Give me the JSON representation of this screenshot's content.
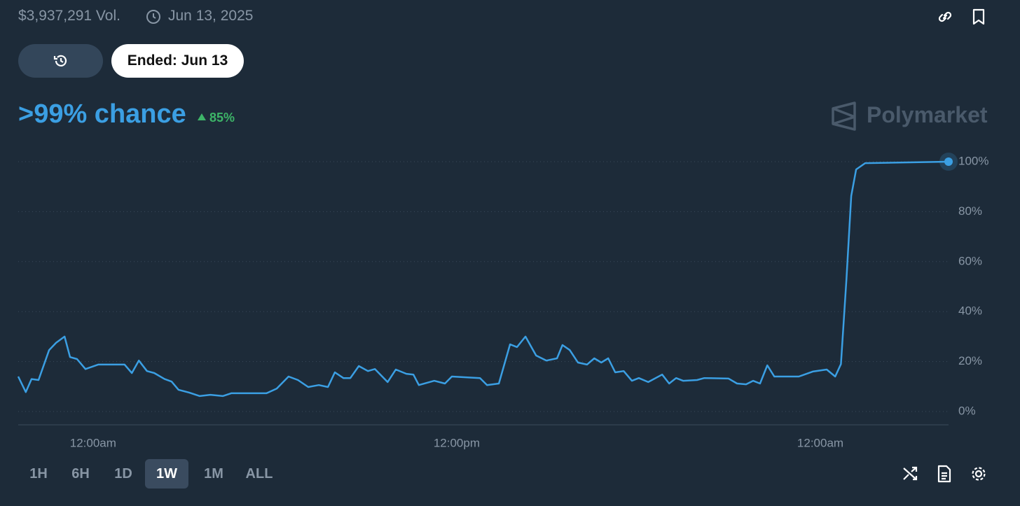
{
  "header": {
    "volume": "$3,937,291 Vol.",
    "date": "Jun 13, 2025"
  },
  "ended_button": "Ended: Jun 13",
  "headline": {
    "chance": ">99% chance",
    "change": "85%"
  },
  "brand": "Polymarket",
  "ranges": [
    "1H",
    "6H",
    "1D",
    "1W",
    "1M",
    "ALL"
  ],
  "active_range": "1W",
  "chart_data": {
    "type": "line",
    "color": "#3b9fe3",
    "x": [
      0,
      0.25,
      0.44,
      0.67,
      1.02,
      1.25,
      1.53,
      1.71,
      1.94,
      2.22,
      2.64,
      3.51,
      3.75,
      3.98,
      4.25,
      4.49,
      4.83,
      5.06,
      5.29,
      5.64,
      5.99,
      6.34,
      6.75,
      7.03,
      8.19,
      8.53,
      8.92,
      9.23,
      9.57,
      9.92,
      10.22,
      10.45,
      10.73,
      10.96,
      11.24,
      11.54,
      11.77,
      12.19,
      12.46,
      12.81,
      13.04,
      13.22,
      13.73,
      14.08,
      14.31,
      14.77,
      15.24,
      15.47,
      15.86,
      16.23,
      16.46,
      16.74,
      17.09,
      17.43,
      17.78,
      17.96,
      18.2,
      18.47,
      18.77,
      19.01,
      19.24,
      19.47,
      19.7,
      19.98,
      20.25,
      20.48,
      20.79,
      21.25,
      21.48,
      21.71,
      21.94,
      22.4,
      22.64,
      23.44,
      23.72,
      24.02,
      24.25,
      24.48,
      24.72,
      24.95,
      25.76,
      26.22,
      26.68,
      26.96,
      27.15,
      27.33,
      27.49,
      27.65,
      27.95,
      30.7
    ],
    "values": [
      14,
      7.8,
      13,
      12.6,
      24.6,
      27.5,
      30,
      21.8,
      21,
      17,
      18.8,
      18.8,
      15.4,
      20.4,
      16.2,
      15.4,
      13,
      12,
      8.7,
      7.6,
      6.2,
      6.7,
      6.2,
      7.3,
      7.3,
      9.2,
      14,
      12.6,
      9.8,
      10.6,
      9.8,
      15.7,
      13.4,
      13.4,
      18.2,
      16.2,
      17,
      11.8,
      16.8,
      15.1,
      14.8,
      10.6,
      12.3,
      11.2,
      14,
      13.7,
      13.4,
      10.6,
      11.2,
      26.9,
      25.8,
      30,
      22.4,
      20.4,
      21.3,
      26.6,
      24.6,
      19.6,
      18.8,
      21.3,
      19.6,
      21.3,
      15.7,
      16.2,
      12.3,
      13.4,
      11.8,
      14.8,
      11.2,
      13.4,
      12.3,
      12.6,
      13.4,
      13.2,
      11.2,
      10.9,
      12.3,
      11.2,
      18.5,
      14,
      14,
      16,
      16.8,
      14,
      19,
      52.7,
      86.3,
      96.9,
      99.4,
      100
    ],
    "xlim": [
      0,
      30.7
    ],
    "xticks": [
      {
        "value": 2.47,
        "label": "12:00am"
      },
      {
        "value": 14.47,
        "label": "12:00pm"
      },
      {
        "value": 26.47,
        "label": "12:00am"
      }
    ],
    "ylim": [
      0,
      100
    ],
    "yticks": [
      {
        "value": 0,
        "label": "0%"
      },
      {
        "value": 20,
        "label": "20%"
      },
      {
        "value": 40,
        "label": "40%"
      },
      {
        "value": 60,
        "label": "60%"
      },
      {
        "value": 80,
        "label": "80%"
      },
      {
        "value": 100,
        "label": "100%"
      }
    ],
    "grid": true
  }
}
